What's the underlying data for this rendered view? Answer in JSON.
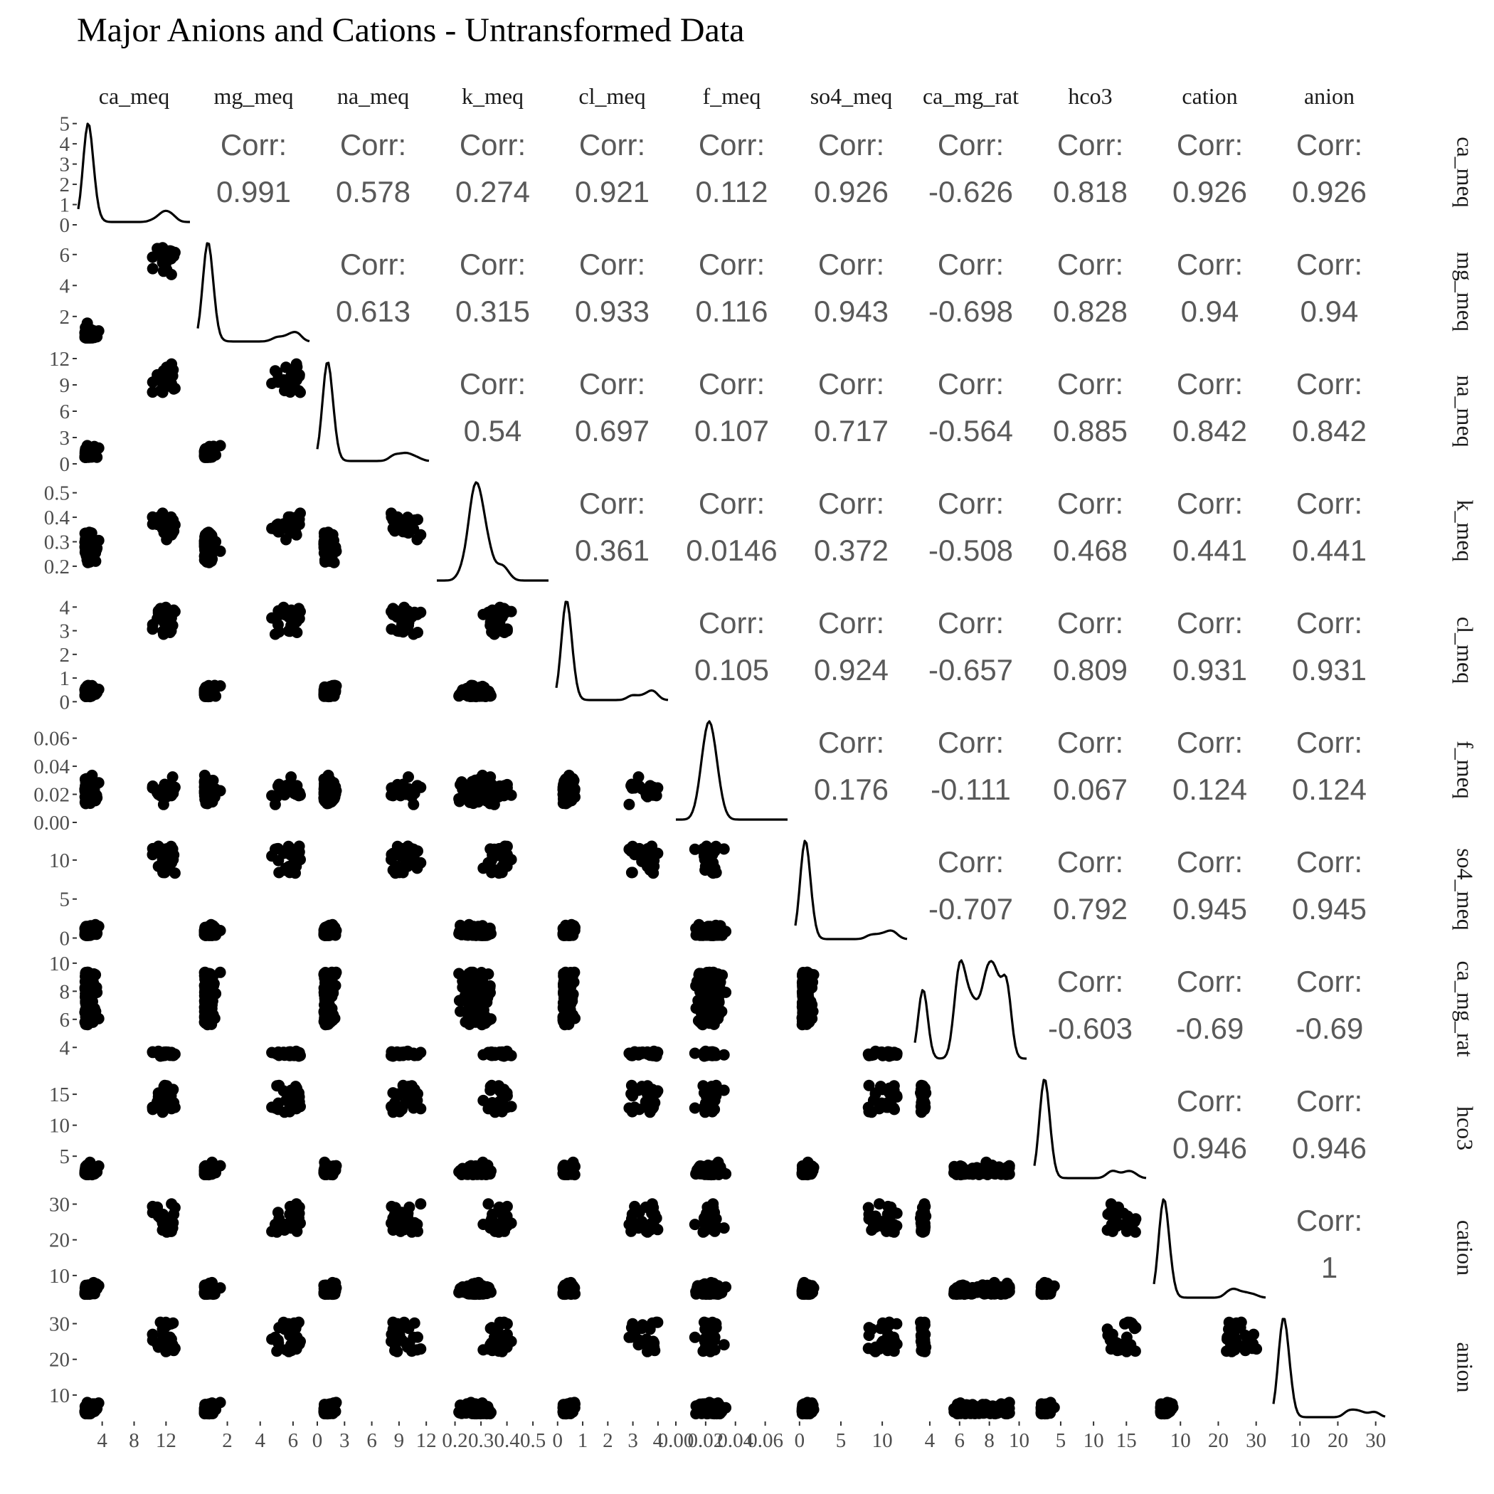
{
  "chart_data": {
    "type": "scatter",
    "subtype": "pairs-plot (scatterplot matrix)",
    "title": "Major Anions and Cations - Untransformed Data",
    "variables": [
      "ca_meq",
      "mg_meq",
      "na_meq",
      "k_meq",
      "cl_meq",
      "f_meq",
      "so4_meq",
      "ca_mg_rat",
      "hco3",
      "cation",
      "anion"
    ],
    "corr_label": "Corr:",
    "correlations": [
      [
        "",
        "0.991",
        "0.578",
        "0.274",
        "0.921",
        "0.112",
        "0.926",
        "-0.626",
        "0.818",
        "0.926",
        "0.926"
      ],
      [
        "",
        "",
        "0.613",
        "0.315",
        "0.933",
        "0.116",
        "0.943",
        "-0.698",
        "0.828",
        "0.94",
        "0.94"
      ],
      [
        "",
        "",
        "",
        "0.54",
        "0.697",
        "0.107",
        "0.717",
        "-0.564",
        "0.885",
        "0.842",
        "0.842"
      ],
      [
        "",
        "",
        "",
        "",
        "0.361",
        "0.0146",
        "0.372",
        "-0.508",
        "0.468",
        "0.441",
        "0.441"
      ],
      [
        "",
        "",
        "",
        "",
        "",
        "0.105",
        "0.924",
        "-0.657",
        "0.809",
        "0.931",
        "0.931"
      ],
      [
        "",
        "",
        "",
        "",
        "",
        "",
        "0.176",
        "-0.111",
        "0.067",
        "0.124",
        "0.124"
      ],
      [
        "",
        "",
        "",
        "",
        "",
        "",
        "",
        "-0.707",
        "0.792",
        "0.945",
        "0.945"
      ],
      [
        "",
        "",
        "",
        "",
        "",
        "",
        "",
        "",
        "-0.603",
        "-0.69",
        "-0.69"
      ],
      [
        "",
        "",
        "",
        "",
        "",
        "",
        "",
        "",
        "",
        "0.946",
        "0.946"
      ],
      [
        "",
        "",
        "",
        "",
        "",
        "",
        "",
        "",
        "",
        "",
        "1"
      ],
      [
        "",
        "",
        "",
        "",
        "",
        "",
        "",
        "",
        "",
        "",
        ""
      ]
    ],
    "x_ticks": [
      [
        "4",
        "8",
        "12"
      ],
      [
        "2",
        "4",
        "6"
      ],
      [
        "0",
        "3",
        "6",
        "9",
        "12"
      ],
      [
        "0.2",
        "0.3",
        "0.4",
        "0.5"
      ],
      [
        "0",
        "1",
        "2",
        "3",
        "4"
      ],
      [
        "0.00",
        "0.02",
        "0.04",
        "0.06"
      ],
      [
        "0",
        "5",
        "10"
      ],
      [
        "4",
        "6",
        "8",
        "10"
      ],
      [
        "5",
        "10",
        "15"
      ],
      [
        "10",
        "20",
        "30"
      ],
      [
        "10",
        "20",
        "30"
      ]
    ],
    "y_ticks": [
      [
        "0",
        "1",
        "2",
        "3",
        "4",
        "5"
      ],
      [
        "2",
        "4",
        "6"
      ],
      [
        "0",
        "3",
        "6",
        "9",
        "12"
      ],
      [
        "0.2",
        "0.3",
        "0.4",
        "0.5"
      ],
      [
        "0",
        "1",
        "2",
        "3",
        "4"
      ],
      [
        "0.00",
        "0.02",
        "0.04",
        "0.06"
      ],
      [
        "0",
        "5",
        "10"
      ],
      [
        "4",
        "6",
        "8",
        "10"
      ],
      [
        "5",
        "10",
        "15"
      ],
      [
        "10",
        "20",
        "30"
      ],
      [
        "10",
        "20",
        "30"
      ]
    ],
    "x_ranges": [
      [
        1.0,
        15.0
      ],
      [
        0.2,
        7.0
      ],
      [
        0.0,
        12.3
      ],
      [
        0.13,
        0.56
      ],
      [
        -0.05,
        4.4
      ],
      [
        0.0,
        0.075
      ],
      [
        -0.5,
        13.0
      ],
      [
        3.0,
        10.5
      ],
      [
        1.0,
        18.0
      ],
      [
        3.0,
        32.5
      ],
      [
        3.0,
        32.5
      ]
    ],
    "y_ranges": [
      [
        0,
        5.2
      ],
      [
        0.2,
        7.0
      ],
      [
        0.0,
        12.0
      ],
      [
        0.13,
        0.56
      ],
      [
        -0.05,
        4.4
      ],
      [
        0.0,
        0.075
      ],
      [
        -0.5,
        13.0
      ],
      [
        3.0,
        10.5
      ],
      [
        1.0,
        18.0
      ],
      [
        3.0,
        32.5
      ],
      [
        3.0,
        32.5
      ]
    ],
    "grid": false,
    "legend": "none"
  }
}
